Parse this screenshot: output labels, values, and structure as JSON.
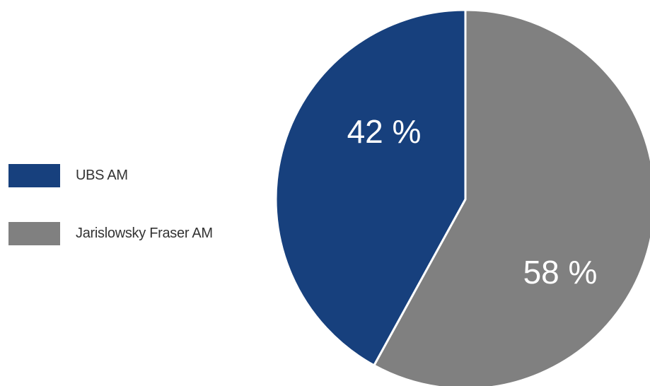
{
  "chart_data": {
    "type": "pie",
    "title": "",
    "legend_position": "left",
    "slices": [
      {
        "name": "UBS AM",
        "value": 42,
        "label": "42 %",
        "color": "#17407d"
      },
      {
        "name": "Jarislowsky Fraser AM",
        "value": 58,
        "label": "58 %",
        "color": "#808080"
      }
    ],
    "start_angle_deg": 0,
    "direction": "counterclockwise"
  }
}
